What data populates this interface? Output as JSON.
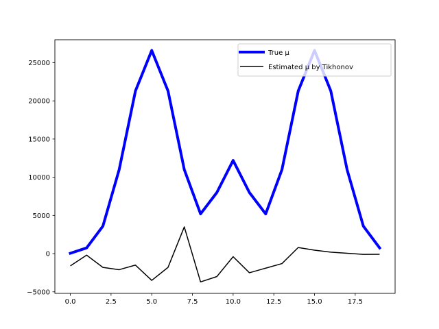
{
  "chart_data": {
    "type": "line",
    "title": "",
    "xlabel": "",
    "ylabel": "",
    "xlim": [
      -0.95,
      19.95
    ],
    "ylim": [
      -5200,
      28000
    ],
    "x_ticks": [
      0.0,
      2.5,
      5.0,
      7.5,
      10.0,
      12.5,
      15.0,
      17.5
    ],
    "x_tick_labels": [
      "0.0",
      "2.5",
      "5.0",
      "7.5",
      "10.0",
      "12.5",
      "15.0",
      "17.5"
    ],
    "y_ticks": [
      -5000,
      0,
      5000,
      10000,
      15000,
      20000,
      25000
    ],
    "y_tick_labels": [
      "−5000",
      "0",
      "5000",
      "10000",
      "15000",
      "20000",
      "25000"
    ],
    "grid": false,
    "legend_position": "top-right",
    "x": [
      0,
      1,
      2,
      3,
      4,
      5,
      6,
      7,
      8,
      9,
      10,
      11,
      12,
      13,
      14,
      15,
      16,
      17,
      18,
      19
    ],
    "series": [
      {
        "name": "True μ",
        "color": "#0000ff",
        "line_style": "thick",
        "values": [
          50,
          750,
          3600,
          11000,
          21300,
          26600,
          21300,
          11000,
          5200,
          8000,
          12200,
          8000,
          5200,
          11000,
          21300,
          26600,
          21300,
          11000,
          3600,
          750
        ]
      },
      {
        "name": "Estimated μ by Tikhonov",
        "color": "#000000",
        "line_style": "thin",
        "values": [
          -1600,
          -200,
          -1800,
          -2100,
          -1500,
          -3500,
          -1800,
          3500,
          -3700,
          -3000,
          -400,
          -2500,
          -1900,
          -1300,
          800,
          450,
          200,
          50,
          -100,
          -80
        ]
      }
    ]
  }
}
